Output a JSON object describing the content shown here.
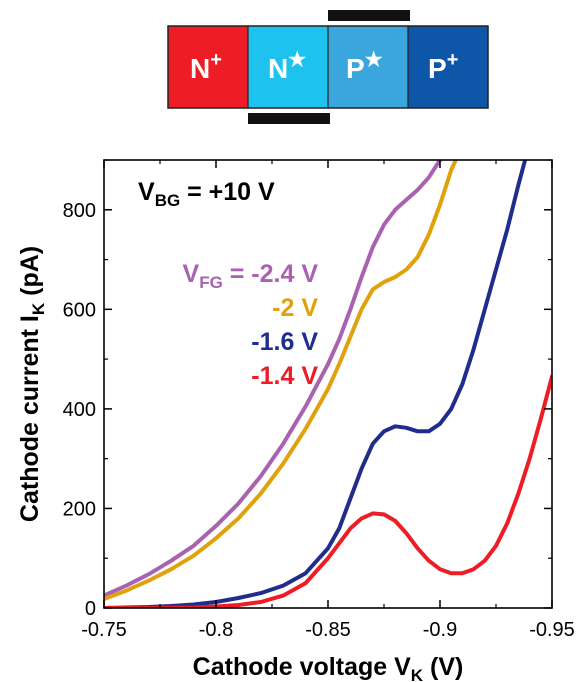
{
  "device": {
    "regions": [
      {
        "label": "N",
        "sup": "+",
        "color": "#ee1c25"
      },
      {
        "label": "N",
        "sup": "★",
        "color": "#1ec2ee"
      },
      {
        "label": "P",
        "sup": "★",
        "color": "#39a7dd"
      },
      {
        "label": "P",
        "sup": "+",
        "color": "#0e57a8"
      }
    ]
  },
  "chart_data": {
    "type": "line",
    "title": "",
    "xlabel": "Cathode voltage V",
    "xlabel_sub": "K",
    "xlabel_unit": " (V)",
    "ylabel": "Cathode current I",
    "ylabel_sub": "K",
    "ylabel_unit": " (pA)",
    "xlim": [
      -0.75,
      -0.95
    ],
    "ylim": [
      0,
      900
    ],
    "x_ticks": [
      -0.75,
      -0.8,
      -0.85,
      -0.9,
      -0.95
    ],
    "x_tick_labels": [
      "-0.75",
      "-0.8",
      "-0.85",
      "-0.9",
      "-0.95"
    ],
    "y_ticks": [
      0,
      200,
      400,
      600,
      800
    ],
    "y_tick_labels": [
      "0",
      "200",
      "400",
      "600",
      "800"
    ],
    "grid": false,
    "annotation": {
      "main": "V",
      "sub": "BG",
      "rest": " = +10 V"
    },
    "legend_prefix": {
      "main": "V",
      "sub": "FG",
      "rest": " = "
    },
    "series": [
      {
        "name": "-2.4 V",
        "color": "#a862b0",
        "points": [
          [
            -0.75,
            25
          ],
          [
            -0.76,
            45
          ],
          [
            -0.77,
            68
          ],
          [
            -0.78,
            95
          ],
          [
            -0.79,
            125
          ],
          [
            -0.8,
            165
          ],
          [
            -0.81,
            210
          ],
          [
            -0.82,
            265
          ],
          [
            -0.83,
            330
          ],
          [
            -0.84,
            405
          ],
          [
            -0.85,
            490
          ],
          [
            -0.855,
            540
          ],
          [
            -0.86,
            600
          ],
          [
            -0.865,
            665
          ],
          [
            -0.87,
            725
          ],
          [
            -0.875,
            770
          ],
          [
            -0.88,
            800
          ],
          [
            -0.885,
            820
          ],
          [
            -0.89,
            840
          ],
          [
            -0.895,
            865
          ],
          [
            -0.9,
            900
          ]
        ]
      },
      {
        "name": "-2 V",
        "color": "#e0a10a",
        "points": [
          [
            -0.75,
            18
          ],
          [
            -0.76,
            35
          ],
          [
            -0.77,
            55
          ],
          [
            -0.78,
            78
          ],
          [
            -0.79,
            105
          ],
          [
            -0.8,
            140
          ],
          [
            -0.81,
            180
          ],
          [
            -0.82,
            230
          ],
          [
            -0.83,
            290
          ],
          [
            -0.84,
            360
          ],
          [
            -0.85,
            440
          ],
          [
            -0.855,
            490
          ],
          [
            -0.86,
            545
          ],
          [
            -0.865,
            600
          ],
          [
            -0.87,
            640
          ],
          [
            -0.875,
            655
          ],
          [
            -0.88,
            665
          ],
          [
            -0.885,
            680
          ],
          [
            -0.89,
            705
          ],
          [
            -0.895,
            750
          ],
          [
            -0.9,
            810
          ],
          [
            -0.905,
            880
          ],
          [
            -0.907,
            900
          ]
        ]
      },
      {
        "name": "-1.6 V",
        "color": "#1f2d8d",
        "points": [
          [
            -0.75,
            0
          ],
          [
            -0.76,
            1
          ],
          [
            -0.77,
            2
          ],
          [
            -0.78,
            4
          ],
          [
            -0.79,
            7
          ],
          [
            -0.8,
            12
          ],
          [
            -0.81,
            20
          ],
          [
            -0.82,
            30
          ],
          [
            -0.83,
            45
          ],
          [
            -0.84,
            70
          ],
          [
            -0.85,
            120
          ],
          [
            -0.855,
            160
          ],
          [
            -0.86,
            220
          ],
          [
            -0.865,
            280
          ],
          [
            -0.87,
            330
          ],
          [
            -0.875,
            355
          ],
          [
            -0.88,
            365
          ],
          [
            -0.885,
            362
          ],
          [
            -0.89,
            355
          ],
          [
            -0.895,
            355
          ],
          [
            -0.9,
            370
          ],
          [
            -0.905,
            400
          ],
          [
            -0.91,
            450
          ],
          [
            -0.915,
            520
          ],
          [
            -0.92,
            600
          ],
          [
            -0.925,
            680
          ],
          [
            -0.93,
            760
          ],
          [
            -0.935,
            850
          ],
          [
            -0.938,
            900
          ]
        ]
      },
      {
        "name": "-1.4 V",
        "color": "#ee1c25",
        "points": [
          [
            -0.75,
            0
          ],
          [
            -0.77,
            0
          ],
          [
            -0.79,
            1
          ],
          [
            -0.8,
            3
          ],
          [
            -0.81,
            6
          ],
          [
            -0.82,
            12
          ],
          [
            -0.83,
            25
          ],
          [
            -0.84,
            50
          ],
          [
            -0.85,
            100
          ],
          [
            -0.855,
            130
          ],
          [
            -0.86,
            160
          ],
          [
            -0.865,
            180
          ],
          [
            -0.87,
            190
          ],
          [
            -0.875,
            188
          ],
          [
            -0.88,
            175
          ],
          [
            -0.885,
            150
          ],
          [
            -0.89,
            120
          ],
          [
            -0.895,
            95
          ],
          [
            -0.9,
            78
          ],
          [
            -0.905,
            70
          ],
          [
            -0.91,
            70
          ],
          [
            -0.915,
            78
          ],
          [
            -0.92,
            95
          ],
          [
            -0.925,
            125
          ],
          [
            -0.93,
            170
          ],
          [
            -0.935,
            230
          ],
          [
            -0.94,
            300
          ],
          [
            -0.945,
            380
          ],
          [
            -0.95,
            465
          ]
        ]
      }
    ]
  }
}
